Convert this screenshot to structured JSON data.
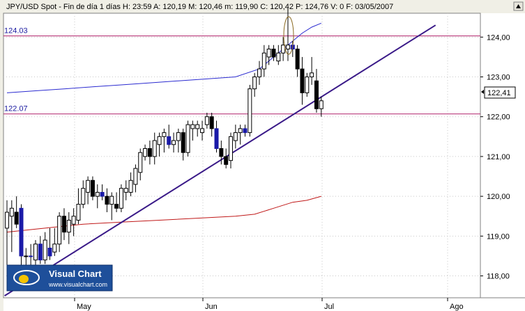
{
  "header": {
    "text": "JPY/USD Spot - Fin de día 1 días H: 23:59  A: 120,19  M: 120,46  m: 119,90  C: 120,42  P: 124,76  V: 0  F: 03/05/2007"
  },
  "logo": {
    "title": "Visual Chart",
    "url": "www.visualchart.com"
  },
  "colors": {
    "background": "#ffffff",
    "frame": "#f0efe6",
    "bullish_body": "#ffffff",
    "bearish_body": "#000000",
    "highlight_body": "#1a1aa8",
    "sma_blue": "#2a2ad0",
    "sma_red": "#c01818",
    "level_line": "#b0206a",
    "trendline": "#3a1a88",
    "logo_bg": "#1e4f9a"
  },
  "chart_data": {
    "type": "candlestick",
    "ylim": [
      117.45,
      124.6
    ],
    "yticks": [
      "118,00",
      "119,00",
      "120,00",
      "121,00",
      "122,00",
      "123,00",
      "124,00"
    ],
    "xticks": [
      "May",
      "Jun",
      "Jul",
      "Ago"
    ],
    "last_price_label": "122,41",
    "horizontal_levels": [
      {
        "value": 124.03,
        "label": "124.03"
      },
      {
        "value": 122.07,
        "label": "122.07"
      }
    ],
    "candles": [
      {
        "o": 119.2,
        "h": 119.9,
        "l": 118.1,
        "c": 119.6,
        "t": "up"
      },
      {
        "o": 119.5,
        "h": 119.9,
        "l": 118.6,
        "c": 119.7,
        "t": "up"
      },
      {
        "o": 119.6,
        "h": 120.0,
        "l": 119.2,
        "c": 119.3,
        "t": "down"
      },
      {
        "o": 119.7,
        "h": 119.8,
        "l": 118.2,
        "c": 118.5,
        "t": "hl"
      },
      {
        "o": 118.5,
        "h": 118.7,
        "l": 118.1,
        "c": 118.5,
        "t": "up"
      },
      {
        "o": 118.5,
        "h": 118.8,
        "l": 118.2,
        "c": 118.5,
        "t": "hl"
      },
      {
        "o": 118.4,
        "h": 118.9,
        "l": 118.2,
        "c": 118.8,
        "t": "up"
      },
      {
        "o": 118.8,
        "h": 119.0,
        "l": 118.3,
        "c": 118.4,
        "t": "hl"
      },
      {
        "o": 118.4,
        "h": 119.1,
        "l": 118.3,
        "c": 118.9,
        "t": "up"
      },
      {
        "o": 118.7,
        "h": 119.2,
        "l": 118.4,
        "c": 118.5,
        "t": "hl"
      },
      {
        "o": 118.6,
        "h": 119.2,
        "l": 118.5,
        "c": 118.8,
        "t": "up"
      },
      {
        "o": 118.8,
        "h": 119.6,
        "l": 118.6,
        "c": 119.5,
        "t": "up"
      },
      {
        "o": 119.5,
        "h": 119.7,
        "l": 118.9,
        "c": 119.1,
        "t": "down"
      },
      {
        "o": 119.1,
        "h": 119.6,
        "l": 118.8,
        "c": 119.4,
        "t": "up"
      },
      {
        "o": 119.3,
        "h": 119.7,
        "l": 119.0,
        "c": 119.5,
        "t": "up"
      },
      {
        "o": 119.4,
        "h": 120.2,
        "l": 119.3,
        "c": 119.8,
        "t": "up"
      },
      {
        "o": 119.8,
        "h": 120.4,
        "l": 119.7,
        "c": 120.2,
        "t": "up"
      },
      {
        "o": 120.1,
        "h": 120.5,
        "l": 119.8,
        "c": 120.4,
        "t": "up"
      },
      {
        "o": 120.4,
        "h": 120.5,
        "l": 119.9,
        "c": 120.0,
        "t": "down"
      },
      {
        "o": 120.0,
        "h": 120.3,
        "l": 119.7,
        "c": 120.1,
        "t": "up"
      },
      {
        "o": 120.1,
        "h": 120.3,
        "l": 119.9,
        "c": 120.0,
        "t": "hl"
      },
      {
        "o": 120.0,
        "h": 120.2,
        "l": 119.6,
        "c": 119.8,
        "t": "down"
      },
      {
        "o": 119.8,
        "h": 120.1,
        "l": 119.4,
        "c": 120.0,
        "t": "up"
      },
      {
        "o": 119.8,
        "h": 120.1,
        "l": 119.6,
        "c": 119.7,
        "t": "down"
      },
      {
        "o": 119.7,
        "h": 120.3,
        "l": 119.6,
        "c": 120.2,
        "t": "up"
      },
      {
        "o": 120.2,
        "h": 120.4,
        "l": 119.9,
        "c": 120.1,
        "t": "up"
      },
      {
        "o": 120.1,
        "h": 120.6,
        "l": 120.0,
        "c": 120.4,
        "t": "up"
      },
      {
        "o": 120.3,
        "h": 120.8,
        "l": 120.1,
        "c": 120.7,
        "t": "up"
      },
      {
        "o": 120.6,
        "h": 121.2,
        "l": 120.4,
        "c": 121.1,
        "t": "up"
      },
      {
        "o": 121.0,
        "h": 121.3,
        "l": 120.9,
        "c": 121.2,
        "t": "up"
      },
      {
        "o": 121.2,
        "h": 121.4,
        "l": 120.8,
        "c": 121.0,
        "t": "down"
      },
      {
        "o": 121.0,
        "h": 121.6,
        "l": 120.8,
        "c": 121.4,
        "t": "up"
      },
      {
        "o": 121.3,
        "h": 121.6,
        "l": 121.0,
        "c": 121.5,
        "t": "up"
      },
      {
        "o": 121.5,
        "h": 121.7,
        "l": 121.1,
        "c": 121.6,
        "t": "up"
      },
      {
        "o": 121.5,
        "h": 121.8,
        "l": 121.2,
        "c": 121.3,
        "t": "hl"
      },
      {
        "o": 121.3,
        "h": 121.6,
        "l": 121.1,
        "c": 121.4,
        "t": "up"
      },
      {
        "o": 121.4,
        "h": 121.7,
        "l": 121.1,
        "c": 121.6,
        "t": "up"
      },
      {
        "o": 121.6,
        "h": 121.7,
        "l": 120.9,
        "c": 121.1,
        "t": "down"
      },
      {
        "o": 121.1,
        "h": 121.9,
        "l": 121.0,
        "c": 121.8,
        "t": "up"
      },
      {
        "o": 121.7,
        "h": 121.9,
        "l": 121.4,
        "c": 121.8,
        "t": "up"
      },
      {
        "o": 121.8,
        "h": 121.9,
        "l": 121.5,
        "c": 121.7,
        "t": "up"
      },
      {
        "o": 121.7,
        "h": 121.9,
        "l": 121.4,
        "c": 121.6,
        "t": "up"
      },
      {
        "o": 121.8,
        "h": 122.1,
        "l": 121.7,
        "c": 122.0,
        "t": "up"
      },
      {
        "o": 122.0,
        "h": 122.1,
        "l": 121.5,
        "c": 121.7,
        "t": "down"
      },
      {
        "o": 121.7,
        "h": 121.9,
        "l": 121.1,
        "c": 121.2,
        "t": "hl"
      },
      {
        "o": 121.2,
        "h": 121.4,
        "l": 120.8,
        "c": 121.0,
        "t": "down"
      },
      {
        "o": 121.0,
        "h": 121.2,
        "l": 120.7,
        "c": 120.8,
        "t": "down"
      },
      {
        "o": 120.9,
        "h": 121.6,
        "l": 120.7,
        "c": 121.5,
        "t": "up"
      },
      {
        "o": 121.4,
        "h": 121.8,
        "l": 121.2,
        "c": 121.6,
        "t": "up"
      },
      {
        "o": 121.6,
        "h": 121.8,
        "l": 121.3,
        "c": 121.7,
        "t": "up"
      },
      {
        "o": 121.7,
        "h": 121.8,
        "l": 121.5,
        "c": 121.6,
        "t": "hl"
      },
      {
        "o": 121.6,
        "h": 122.8,
        "l": 121.5,
        "c": 122.7,
        "t": "up"
      },
      {
        "o": 122.7,
        "h": 123.1,
        "l": 122.5,
        "c": 123.0,
        "t": "up"
      },
      {
        "o": 123.0,
        "h": 123.4,
        "l": 122.8,
        "c": 123.2,
        "t": "up"
      },
      {
        "o": 123.2,
        "h": 123.8,
        "l": 123.0,
        "c": 123.6,
        "t": "up"
      },
      {
        "o": 123.5,
        "h": 123.8,
        "l": 123.3,
        "c": 123.7,
        "t": "up"
      },
      {
        "o": 123.7,
        "h": 123.8,
        "l": 123.4,
        "c": 123.5,
        "t": "down"
      },
      {
        "o": 123.4,
        "h": 123.8,
        "l": 123.3,
        "c": 123.6,
        "t": "up"
      },
      {
        "o": 123.6,
        "h": 124.0,
        "l": 123.4,
        "c": 123.8,
        "t": "up"
      },
      {
        "o": 123.7,
        "h": 124.76,
        "l": 123.4,
        "c": 123.8,
        "t": "up"
      },
      {
        "o": 123.8,
        "h": 123.9,
        "l": 123.5,
        "c": 123.7,
        "t": "hl"
      },
      {
        "o": 123.7,
        "h": 123.8,
        "l": 123.0,
        "c": 123.2,
        "t": "down"
      },
      {
        "o": 123.2,
        "h": 123.5,
        "l": 122.3,
        "c": 122.6,
        "t": "down"
      },
      {
        "o": 122.6,
        "h": 123.1,
        "l": 122.5,
        "c": 123.0,
        "t": "up"
      },
      {
        "o": 123.0,
        "h": 123.5,
        "l": 122.8,
        "c": 123.1,
        "t": "up"
      },
      {
        "o": 122.9,
        "h": 123.2,
        "l": 122.1,
        "c": 122.2,
        "t": "down"
      },
      {
        "o": 122.2,
        "h": 122.5,
        "l": 122.0,
        "c": 122.4,
        "t": "up"
      }
    ],
    "series": [
      {
        "name": "",
        "color": "#2a2ad0",
        "values": [
          [
            0,
            122.6
          ],
          [
            6,
            122.65
          ],
          [
            12,
            122.7
          ],
          [
            18,
            122.75
          ],
          [
            24,
            122.8
          ],
          [
            30,
            122.85
          ],
          [
            36,
            122.9
          ],
          [
            42,
            122.95
          ],
          [
            48,
            123.0
          ],
          [
            53,
            123.2
          ],
          [
            56,
            123.5
          ],
          [
            59,
            123.8
          ],
          [
            62,
            124.1
          ],
          [
            64,
            124.25
          ],
          [
            66,
            124.35
          ]
        ]
      },
      {
        "name": "",
        "color": "#c01818",
        "values": [
          [
            0,
            119.1
          ],
          [
            8,
            119.2
          ],
          [
            16,
            119.3
          ],
          [
            24,
            119.35
          ],
          [
            32,
            119.4
          ],
          [
            40,
            119.45
          ],
          [
            48,
            119.5
          ],
          [
            52,
            119.55
          ],
          [
            56,
            119.7
          ],
          [
            60,
            119.85
          ],
          [
            63,
            119.9
          ],
          [
            66,
            120.0
          ]
        ]
      }
    ],
    "trendline": {
      "from": [
        -0.5,
        117.5
      ],
      "to": [
        90,
        124.3
      ]
    }
  }
}
